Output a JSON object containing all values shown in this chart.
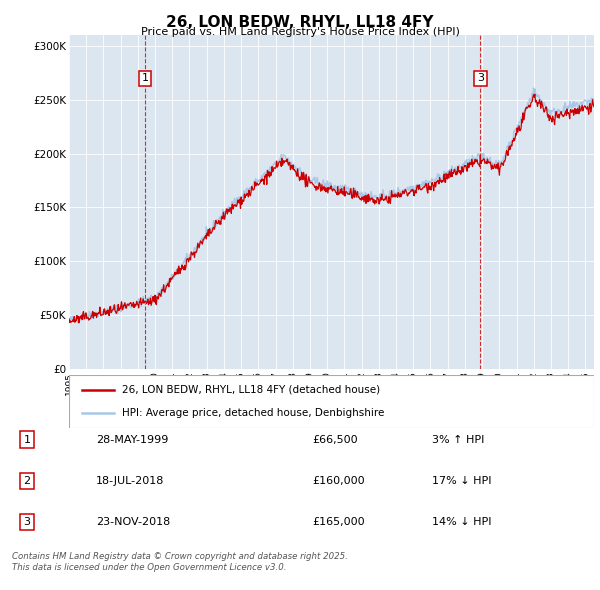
{
  "title": "26, LON BEDW, RHYL, LL18 4FY",
  "subtitle": "Price paid vs. HM Land Registry's House Price Index (HPI)",
  "plot_bg_color": "#dce6f1",
  "hpi_color": "#a8c8e8",
  "price_color": "#cc0000",
  "ylim": [
    0,
    310000
  ],
  "yticks": [
    0,
    50000,
    100000,
    150000,
    200000,
    250000,
    300000
  ],
  "ytick_labels": [
    "£0",
    "£50K",
    "£100K",
    "£150K",
    "£200K",
    "£250K",
    "£300K"
  ],
  "sale1_date": 1999.41,
  "sale2_date": 2018.55,
  "sale3_date": 2018.9,
  "legend_line1": "26, LON BEDW, RHYL, LL18 4FY (detached house)",
  "legend_line2": "HPI: Average price, detached house, Denbighshire",
  "table_rows": [
    [
      "1",
      "28-MAY-1999",
      "£66,500",
      "3% ↑ HPI"
    ],
    [
      "2",
      "18-JUL-2018",
      "£160,000",
      "17% ↓ HPI"
    ],
    [
      "3",
      "23-NOV-2018",
      "£165,000",
      "14% ↓ HPI"
    ]
  ],
  "footnote": "Contains HM Land Registry data © Crown copyright and database right 2025.\nThis data is licensed under the Open Government Licence v3.0.",
  "xmin": 1995,
  "xmax": 2025.5
}
